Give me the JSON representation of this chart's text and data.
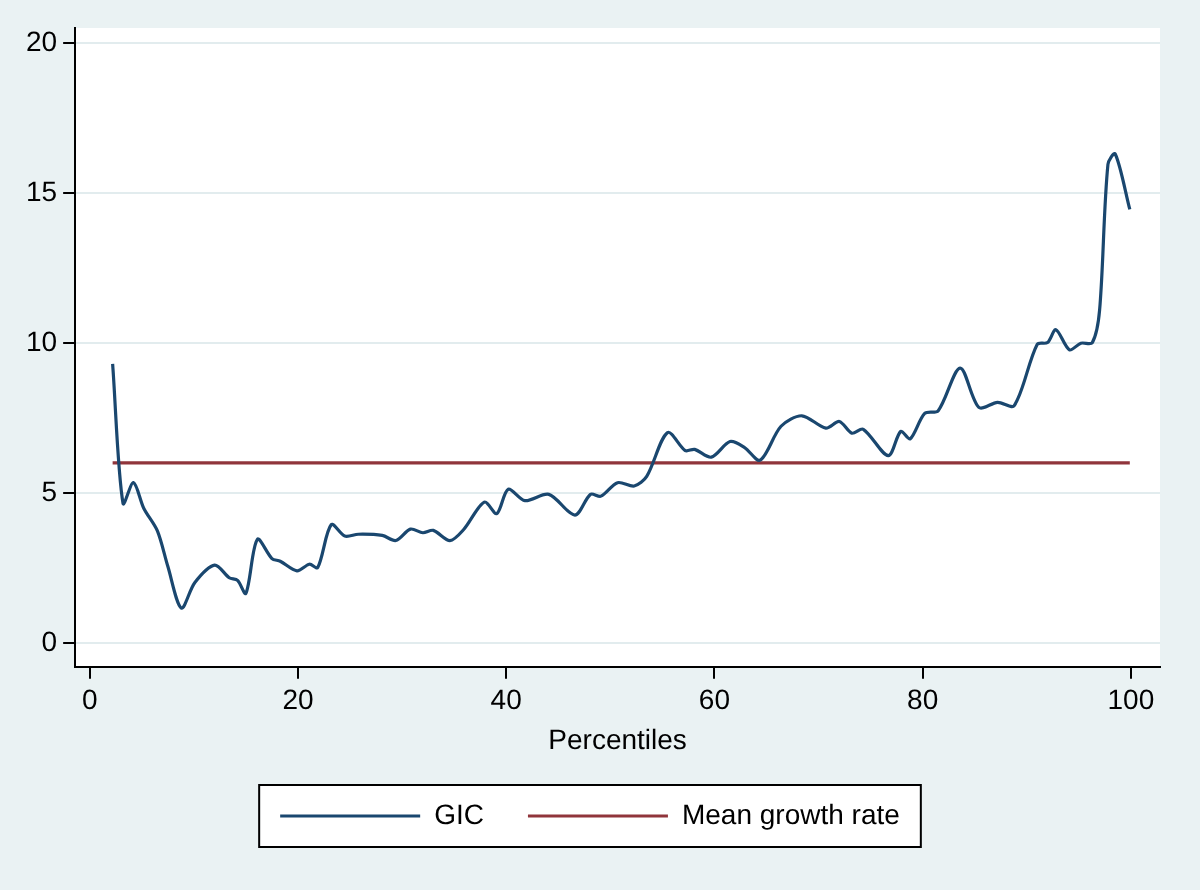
{
  "chart_data": {
    "type": "line",
    "xlabel": "Percentiles",
    "xlim": [
      -1.4,
      102.8
    ],
    "ylim": [
      -0.8,
      20.5
    ],
    "xticks": [
      0,
      20,
      40,
      60,
      80,
      100
    ],
    "yticks": [
      0,
      5,
      10,
      15,
      20
    ],
    "grid": "y",
    "legend": "bottom",
    "series": [
      {
        "name": "GIC",
        "color": "#1a476f",
        "x": [
          2.2,
          3.2,
          4.2,
          5.2,
          6.5,
          7.5,
          8.8,
          10.1,
          12.0,
          13.4,
          14.2,
          15.0,
          16.1,
          17.5,
          18.3,
          19.9,
          21.1,
          21.9,
          23.2,
          24.5,
          25.8,
          28.1,
          29.4,
          30.8,
          32.0,
          33.0,
          34.6,
          35.9,
          37.9,
          39.1,
          40.2,
          41.8,
          44.1,
          46.6,
          48.1,
          49.1,
          50.7,
          52.3,
          53.5,
          55.5,
          57.2,
          58.1,
          59.7,
          61.5,
          62.9,
          64.4,
          66.4,
          68.4,
          70.7,
          72.0,
          73.2,
          74.3,
          76.7,
          77.9,
          78.8,
          80.2,
          81.5,
          83.6,
          85.4,
          87.2,
          88.8,
          91.0,
          92.0,
          92.8,
          94.1,
          95.2,
          96.3,
          97.0,
          97.8,
          98.5,
          99.9
        ],
        "values": [
          9.3,
          4.65,
          5.34,
          4.48,
          3.73,
          2.55,
          1.16,
          2.01,
          2.59,
          2.17,
          2.08,
          1.65,
          3.45,
          2.81,
          2.72,
          2.4,
          2.62,
          2.51,
          3.94,
          3.56,
          3.62,
          3.58,
          3.41,
          3.79,
          3.67,
          3.75,
          3.41,
          3.77,
          4.69,
          4.31,
          5.12,
          4.74,
          4.95,
          4.26,
          4.95,
          4.89,
          5.34,
          5.23,
          5.55,
          7.01,
          6.41,
          6.45,
          6.19,
          6.71,
          6.51,
          6.09,
          7.22,
          7.57,
          7.16,
          7.38,
          6.99,
          7.12,
          6.24,
          7.05,
          6.8,
          7.65,
          7.74,
          9.16,
          7.85,
          8.02,
          7.91,
          9.95,
          10.01,
          10.44,
          9.77,
          9.99,
          10.01,
          11.1,
          15.95,
          16.3,
          14.45
        ]
      },
      {
        "name": "Mean growth rate",
        "color": "#90353b",
        "x": [
          2.2,
          99.9
        ],
        "values": [
          6.0,
          6.0
        ]
      }
    ]
  }
}
